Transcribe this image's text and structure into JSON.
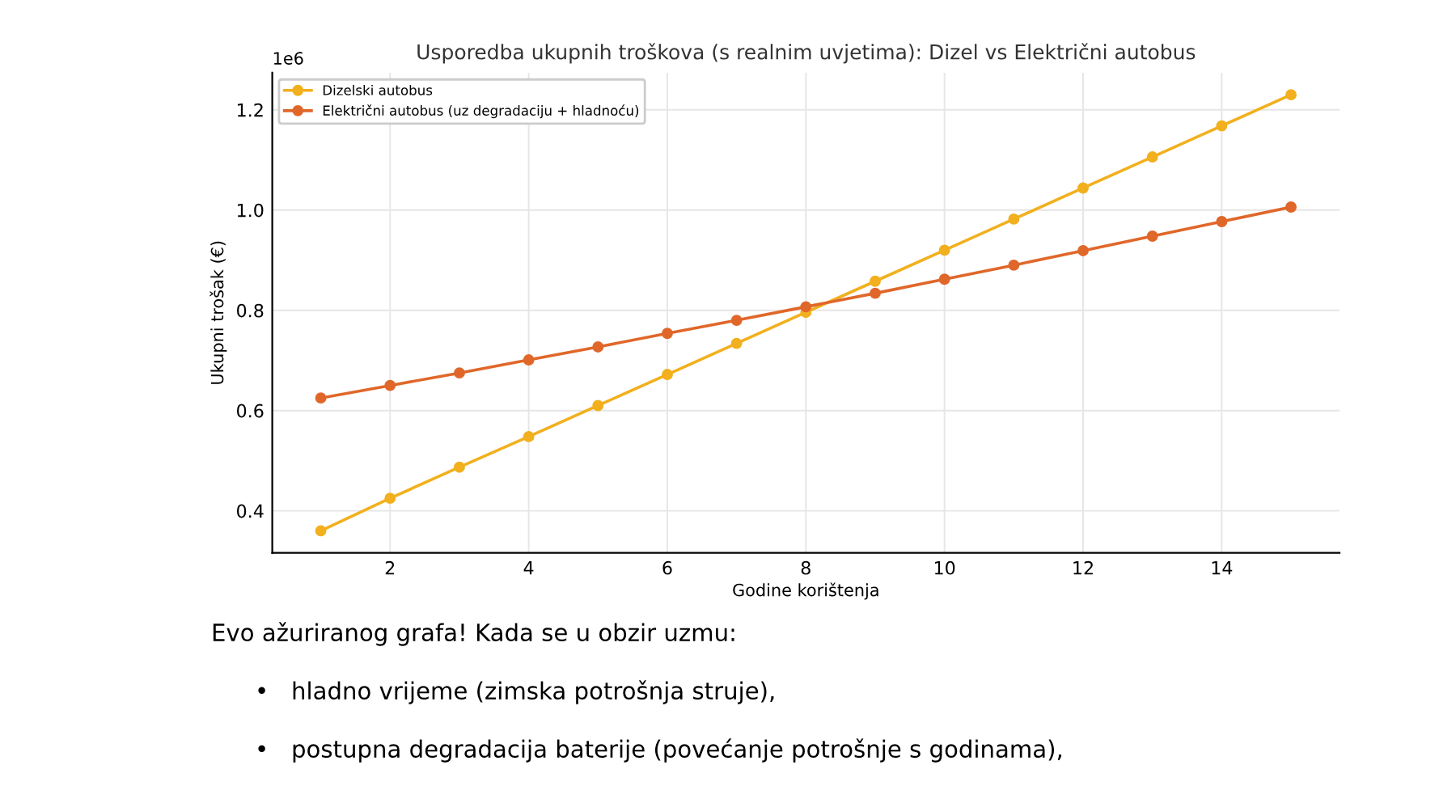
{
  "chart_data": {
    "type": "line",
    "title": "Usporedba ukupnih troškova (s realnim uvjetima): Dizel vs Električni autobus",
    "xlabel": "Godine korištenja",
    "ylabel": "Ukupni trošak (€)",
    "x": [
      1,
      2,
      3,
      4,
      5,
      6,
      7,
      8,
      9,
      10,
      11,
      12,
      13,
      14,
      15
    ],
    "series": [
      {
        "name": "Dizelski autobus",
        "color": "#f2b01e",
        "values": [
          0.36,
          0.425,
          0.487,
          0.548,
          0.61,
          0.672,
          0.734,
          0.796,
          0.858,
          0.92,
          0.982,
          1.044,
          1.106,
          1.168,
          1.23
        ]
      },
      {
        "name": "Električni autobus (uz degradaciju + hladnoću)",
        "color": "#e0672a",
        "values": [
          0.625,
          0.65,
          0.675,
          0.701,
          0.727,
          0.754,
          0.78,
          0.807,
          0.834,
          0.862,
          0.89,
          0.919,
          0.948,
          0.977,
          1.006
        ]
      }
    ],
    "xlim": [
      0.3,
      15.7
    ],
    "xticks": [
      2,
      4,
      6,
      8,
      10,
      12,
      14
    ],
    "ylim": [
      0.316,
      1.274
    ],
    "yticks": [
      0.4,
      0.6,
      0.8,
      {
        "value": 1,
        "label": "1.0"
      },
      1.2
    ],
    "grid": true,
    "legend": "top left",
    "marker": "circle",
    "line_style": "solid",
    "annotations": [
      "1e6",
      "Evo ažuriranog grafa! Kada se u obzir uzmu:",
      "•   hladno vrijeme (zimska potrošnja struje),",
      "•   postupna degradacija baterije (povećanje potrošnje s godinama),"
    ]
  }
}
